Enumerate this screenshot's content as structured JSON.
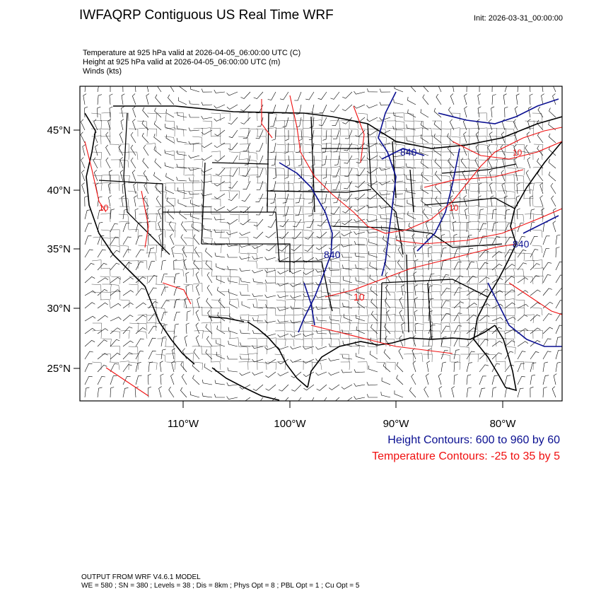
{
  "header": {
    "title": "IWFAQRP Contiguous US Real Time WRF",
    "init": "Init: 2026-03-31_00:00:00"
  },
  "fields": [
    "Temperature at 925 hPa valid at 2026-04-05_06:00:00 UTC   (C)",
    "Height at 925 hPa valid at 2026-04-05_06:00:00 UTC   (m)",
    "Winds   (kts)"
  ],
  "axes": {
    "lat_labels": [
      "45°N",
      "40°N",
      "35°N",
      "30°N",
      "25°N"
    ],
    "lon_labels": [
      "110°W",
      "100°W",
      "90°W",
      "80°W"
    ]
  },
  "contour_labels": {
    "height": [
      "840",
      "840",
      "840"
    ],
    "temperature": [
      "10",
      "10",
      "10",
      "10"
    ]
  },
  "legend": {
    "height": "Height Contours: 600 to 960 by 60",
    "temperature": "Temperature Contours: -25 to 35 by 5"
  },
  "colors": {
    "height_contour": "#0a0f91",
    "temperature_contour": "#f01010",
    "boundaries": "#000000",
    "background": "#ffffff"
  },
  "footer": {
    "line1": "OUTPUT FROM WRF V4.6.1 MODEL",
    "line2": "WE = 580 ; SN = 380 ; Levels = 38 ; Dis = 8km ; Phys Opt = 8 ; PBL Opt = 1 ; Cu Opt = 5"
  }
}
